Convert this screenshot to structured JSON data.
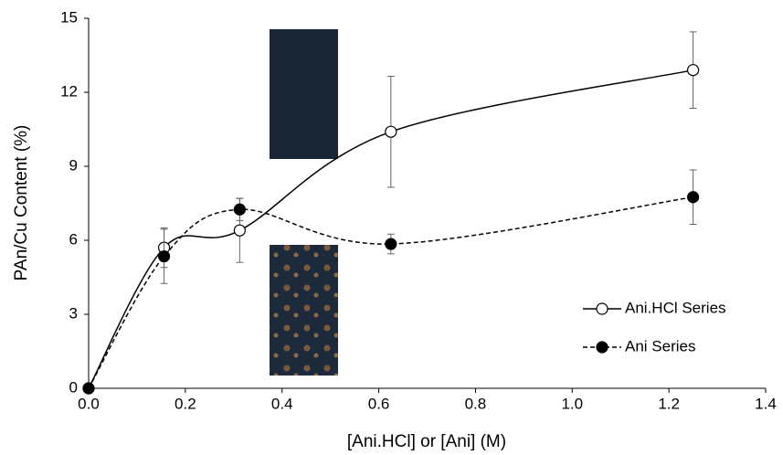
{
  "chart_data": {
    "type": "scatter-line",
    "xlabel": "[Ani.HCl] or [Ani] (M)",
    "ylabel": "PAn/Cu Content (%)",
    "x": [
      0,
      0.156,
      0.3125,
      0.625,
      1.25
    ],
    "series": [
      {
        "name": "Ani.HCl Series",
        "color": "#000000",
        "line_style": "solid",
        "marker_fill": "#ffffff",
        "values": [
          0,
          5.7,
          6.4,
          10.4,
          12.9
        ],
        "errors": [
          0,
          0.8,
          1.3,
          2.25,
          1.55
        ]
      },
      {
        "name": "Ani Series",
        "color": "#000000",
        "line_style": "dashed",
        "marker_fill": "#000000",
        "values": [
          0,
          5.35,
          7.25,
          5.85,
          7.75
        ],
        "errors": [
          0,
          1.1,
          0.45,
          0.4,
          1.1
        ]
      }
    ],
    "xlim": [
      0,
      1.4
    ],
    "xticks": [
      {
        "value": 0,
        "label": "0.0"
      },
      0.2,
      0.4,
      0.6,
      0.8,
      {
        "value": 1,
        "label": "1.0"
      },
      1.2,
      1.4
    ],
    "ylim": [
      0,
      15
    ],
    "yticks": [
      0,
      3,
      6,
      9,
      12,
      15
    ],
    "grid": false,
    "legend": "lower right"
  }
}
